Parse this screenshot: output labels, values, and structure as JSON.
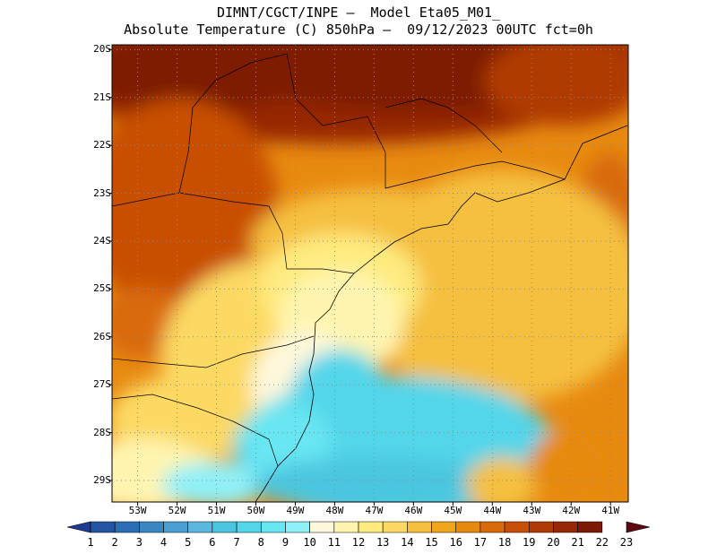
{
  "title": {
    "line1": "DIMNT/CGCT/INPE –  Model Eta05_M01_",
    "line2": "Absolute Temperature (C) 850hPa –  09/12/2023 00UTC fct=0h"
  },
  "map": {
    "lat_labels": [
      "20S",
      "21S",
      "22S",
      "23S",
      "24S",
      "25S",
      "26S",
      "27S",
      "28S",
      "29S"
    ],
    "lon_labels": [
      "53W",
      "52W",
      "51W",
      "50W",
      "49W",
      "48W",
      "47W",
      "46W",
      "45W",
      "44W",
      "43W",
      "42W",
      "41W"
    ],
    "lat_range": [
      -29.45,
      -19.9
    ],
    "lon_range": [
      -53.65,
      -40.55
    ]
  },
  "colorbar": {
    "labels": [
      "1",
      "2",
      "3",
      "4",
      "5",
      "6",
      "7",
      "8",
      "9",
      "10",
      "11",
      "12",
      "13",
      "14",
      "15",
      "16",
      "17",
      "18",
      "19",
      "20",
      "21",
      "22",
      "23"
    ],
    "colors": [
      "#1f3a93",
      "#2355a3",
      "#2a6fb5",
      "#3a86c3",
      "#4aa0d2",
      "#5bb7e0",
      "#4cc6e0",
      "#52d6ea",
      "#68e6f2",
      "#8ff0f8",
      "#fff8dc",
      "#fff5b0",
      "#ffeb80",
      "#fcd964",
      "#f5c040",
      "#f0a51c",
      "#e88a10",
      "#d96a0a",
      "#c84f06",
      "#b03a06",
      "#962806",
      "#7d1a04",
      "#5e0a12"
    ]
  },
  "colors": {
    "cold": "#52d6ea",
    "warm": "#7d1a04",
    "grid": "#8a8a8a"
  }
}
